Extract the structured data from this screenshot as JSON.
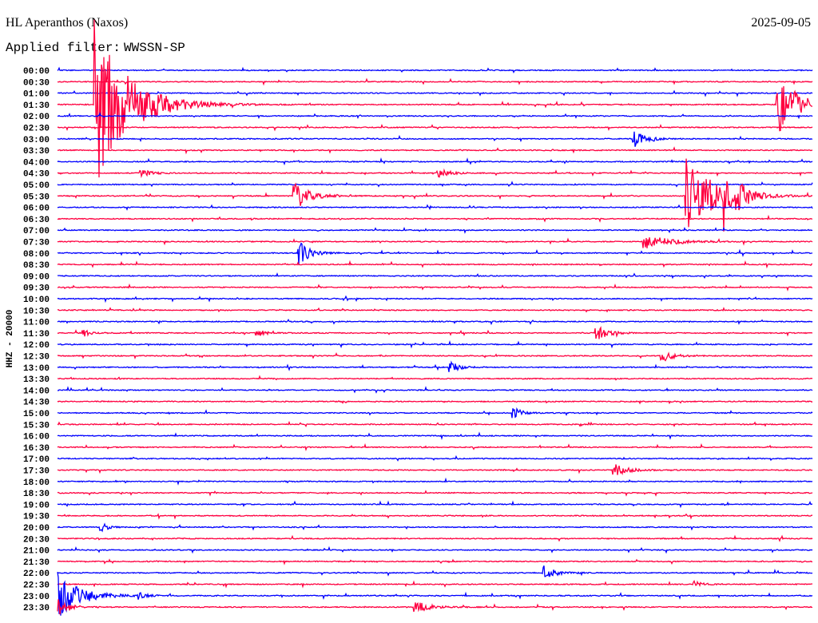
{
  "header": {
    "station": "HL Aperanthos (Naxos)",
    "date": "2025-09-05",
    "filter_label": "Applied filter:",
    "filter_value": "WWSSN-SP"
  },
  "chart_data": {
    "type": "line",
    "title": "HL Aperanthos (Naxos)",
    "ylabel": "HHZ - 20000",
    "xlabel": "",
    "minutes_per_row": 30,
    "colors": {
      "even": "#0000ff",
      "odd": "#ff0040"
    },
    "row_labels": [
      "00:00",
      "00:30",
      "01:00",
      "01:30",
      "02:00",
      "02:30",
      "03:00",
      "03:30",
      "04:00",
      "04:30",
      "05:00",
      "05:30",
      "06:00",
      "06:30",
      "07:00",
      "07:30",
      "08:00",
      "08:30",
      "09:00",
      "09:30",
      "10:00",
      "10:30",
      "11:00",
      "11:30",
      "12:00",
      "12:30",
      "13:00",
      "13:30",
      "14:00",
      "14:30",
      "15:00",
      "15:30",
      "16:00",
      "16:30",
      "17:00",
      "17:30",
      "18:00",
      "18:30",
      "19:00",
      "19:30",
      "20:00",
      "20:30",
      "21:00",
      "21:30",
      "22:00",
      "22:30",
      "23:00",
      "23:30"
    ],
    "events": [
      {
        "row": 3,
        "minute": 1.5,
        "amplitude": 110,
        "decay": 1.2
      },
      {
        "row": 3,
        "minute": 28.6,
        "amplitude": 40,
        "decay": 0.8
      },
      {
        "row": 6,
        "minute": 22.9,
        "amplitude": 12,
        "decay": 0.4
      },
      {
        "row": 9,
        "minute": 3.3,
        "amplitude": 5,
        "decay": 0.4
      },
      {
        "row": 9,
        "minute": 15.1,
        "amplitude": 6,
        "decay": 0.4
      },
      {
        "row": 11,
        "minute": 9.4,
        "amplitude": 20,
        "decay": 0.5
      },
      {
        "row": 11,
        "minute": 25.0,
        "amplitude": 60,
        "decay": 0.8
      },
      {
        "row": 11,
        "minute": 26.5,
        "amplitude": 35,
        "decay": 0.6
      },
      {
        "row": 15,
        "minute": 23.3,
        "amplitude": 9,
        "decay": 1.0
      },
      {
        "row": 16,
        "minute": 9.6,
        "amplitude": 15,
        "decay": 0.4
      },
      {
        "row": 23,
        "minute": 1.0,
        "amplitude": 5,
        "decay": 0.3
      },
      {
        "row": 23,
        "minute": 7.9,
        "amplitude": 5,
        "decay": 0.3
      },
      {
        "row": 23,
        "minute": 21.4,
        "amplitude": 10,
        "decay": 0.4
      },
      {
        "row": 25,
        "minute": 24.0,
        "amplitude": 8,
        "decay": 0.4
      },
      {
        "row": 26,
        "minute": 15.6,
        "amplitude": 8,
        "decay": 0.3
      },
      {
        "row": 30,
        "minute": 18.1,
        "amplitude": 8,
        "decay": 0.3
      },
      {
        "row": 35,
        "minute": 22.1,
        "amplitude": 8,
        "decay": 0.5
      },
      {
        "row": 40,
        "minute": 1.7,
        "amplitude": 6,
        "decay": 0.3
      },
      {
        "row": 44,
        "minute": 19.3,
        "amplitude": 10,
        "decay": 0.4
      },
      {
        "row": 45,
        "minute": 25.3,
        "amplitude": 4,
        "decay": 0.3
      },
      {
        "row": 46,
        "minute": 0.0,
        "amplitude": 30,
        "decay": 0.8
      },
      {
        "row": 46,
        "minute": 3.2,
        "amplitude": 4,
        "decay": 0.3
      },
      {
        "row": 47,
        "minute": 0.0,
        "amplitude": 20,
        "decay": 0.3
      },
      {
        "row": 47,
        "minute": 14.2,
        "amplitude": 8,
        "decay": 0.5
      }
    ]
  }
}
